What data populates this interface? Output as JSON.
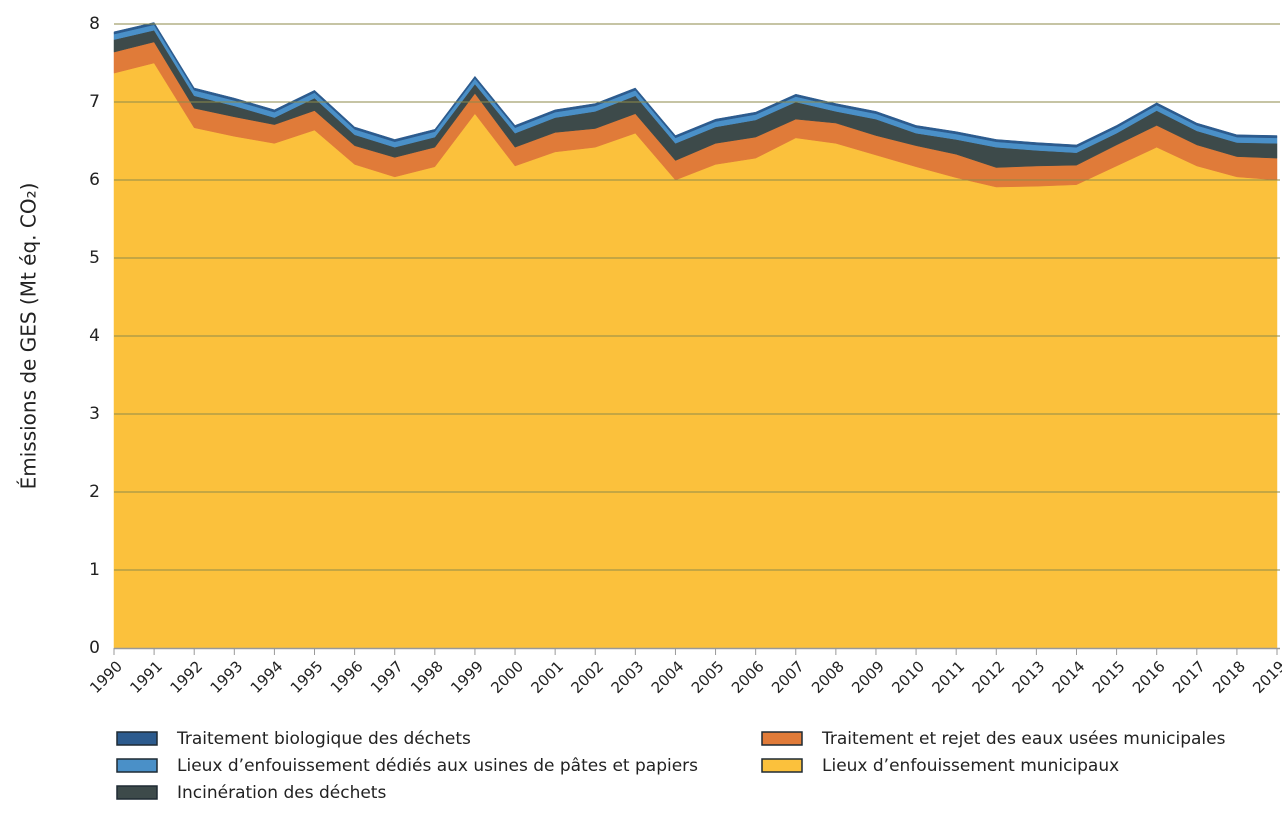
{
  "chart_data": {
    "type": "stacked-area",
    "ylabel": "Émissions de GES (Mt éq. CO₂)",
    "x": [
      1990,
      1991,
      1992,
      1993,
      1994,
      1995,
      1996,
      1997,
      1998,
      1999,
      2000,
      2001,
      2002,
      2003,
      2004,
      2005,
      2006,
      2007,
      2008,
      2009,
      2010,
      2011,
      2012,
      2013,
      2014,
      2015,
      2016,
      2017,
      2018,
      2019
    ],
    "xlim": [
      1990,
      2019
    ],
    "xticks": [
      1990,
      1991,
      1992,
      1993,
      1994,
      1995,
      1996,
      1997,
      1998,
      1999,
      2000,
      2001,
      2002,
      2003,
      2004,
      2005,
      2006,
      2007,
      2008,
      2009,
      2010,
      2011,
      2012,
      2013,
      2014,
      2015,
      2016,
      2017,
      2018,
      2019
    ],
    "ylim": [
      0,
      8
    ],
    "yticks": [
      0,
      1,
      2,
      3,
      4,
      5,
      6,
      7,
      8
    ],
    "grid": true,
    "series": [
      {
        "name": " Lieux d’enfouissement municipaux",
        "color": "#fbc13c",
        "values": [
          7.37,
          7.5,
          6.67,
          6.56,
          6.47,
          6.64,
          6.2,
          6.04,
          6.17,
          6.85,
          6.18,
          6.36,
          6.42,
          6.6,
          6.0,
          6.2,
          6.28,
          6.54,
          6.47,
          6.32,
          6.17,
          6.03,
          5.91,
          5.92,
          5.94,
          6.18,
          6.42,
          6.18,
          6.04,
          6.0
        ]
      },
      {
        "name": "Traitement et rejet des eaux usées municipales",
        "color": "#e07b39",
        "values": [
          0.27,
          0.27,
          0.25,
          0.25,
          0.24,
          0.25,
          0.24,
          0.25,
          0.25,
          0.26,
          0.24,
          0.25,
          0.24,
          0.25,
          0.25,
          0.27,
          0.27,
          0.24,
          0.26,
          0.25,
          0.27,
          0.3,
          0.25,
          0.26,
          0.25,
          0.27,
          0.28,
          0.27,
          0.26,
          0.28
        ]
      },
      {
        "name": "Incinération des déchets",
        "color": "#3d4a4a",
        "values": [
          0.16,
          0.15,
          0.16,
          0.14,
          0.09,
          0.16,
          0.14,
          0.13,
          0.13,
          0.12,
          0.18,
          0.19,
          0.22,
          0.23,
          0.22,
          0.21,
          0.22,
          0.22,
          0.15,
          0.21,
          0.16,
          0.19,
          0.26,
          0.2,
          0.16,
          0.15,
          0.19,
          0.18,
          0.18,
          0.19
        ]
      },
      {
        "name": "Lieux d’enfouissement dédiés aux usines de pâtes et papiers",
        "color": "#4a90c8",
        "values": [
          0.07,
          0.07,
          0.07,
          0.07,
          0.07,
          0.07,
          0.07,
          0.07,
          0.07,
          0.07,
          0.07,
          0.07,
          0.07,
          0.07,
          0.07,
          0.07,
          0.07,
          0.07,
          0.07,
          0.07,
          0.07,
          0.07,
          0.07,
          0.07,
          0.07,
          0.07,
          0.07,
          0.07,
          0.07,
          0.07
        ]
      },
      {
        "name": "Traitement biologique des déchets",
        "color": "#2c5b8e",
        "values": [
          0.03,
          0.03,
          0.03,
          0.03,
          0.03,
          0.03,
          0.03,
          0.03,
          0.03,
          0.03,
          0.03,
          0.03,
          0.03,
          0.03,
          0.03,
          0.03,
          0.03,
          0.03,
          0.03,
          0.03,
          0.03,
          0.03,
          0.03,
          0.03,
          0.03,
          0.03,
          0.03,
          0.03,
          0.03,
          0.03
        ]
      }
    ]
  }
}
